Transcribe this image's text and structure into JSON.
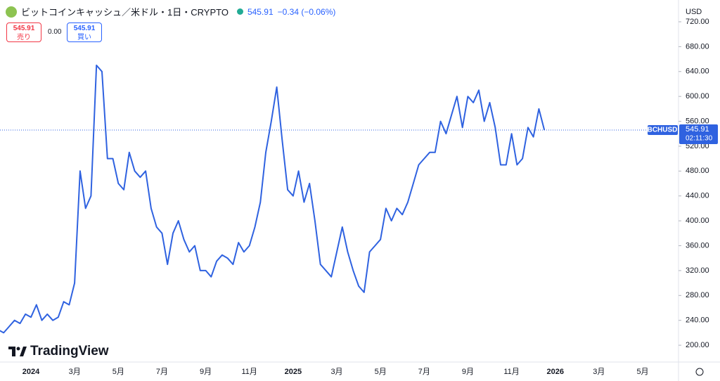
{
  "header": {
    "symbol": "ビットコインキャッシュ／米ドル・1日・CRYPTO",
    "price": "545.91",
    "change": "−0.34 (−0.06%)",
    "sell_price": "545.91",
    "sell_label": "売り",
    "spread": "0.00",
    "buy_price": "545.91",
    "buy_label": "買い",
    "currency": "USD",
    "logo": "TradingView"
  },
  "chart_data": {
    "type": "line",
    "color": "#2f62e0",
    "categories": [
      null,
      null,
      null,
      null,
      null,
      null,
      "2024",
      null,
      null,
      null,
      null,
      null,
      null,
      null,
      "3月",
      null,
      null,
      null,
      null,
      null,
      null,
      null,
      "5月",
      null,
      null,
      null,
      null,
      null,
      null,
      null,
      "7月",
      null,
      null,
      null,
      null,
      null,
      null,
      null,
      "9月",
      null,
      null,
      null,
      null,
      null,
      null,
      null,
      "11月",
      null,
      null,
      null,
      null,
      null,
      null,
      null,
      "2025",
      null,
      null,
      null,
      null,
      null,
      null,
      null,
      "3月",
      null,
      null,
      null,
      null,
      null,
      null,
      null,
      "5月",
      null,
      null,
      null,
      null,
      null,
      null,
      null,
      "7月",
      null,
      null,
      null,
      null,
      null,
      null,
      null,
      "9月",
      null,
      null,
      null,
      null,
      null,
      null,
      null,
      "11月",
      null,
      null,
      null,
      null,
      null,
      null,
      null,
      "2026",
      null,
      null,
      null,
      null,
      null,
      null,
      null,
      "3月",
      null,
      null,
      null,
      null,
      null,
      null,
      null,
      "5月",
      null,
      null,
      null,
      null,
      null
    ],
    "values": [
      225,
      220,
      230,
      240,
      235,
      250,
      245,
      265,
      240,
      250,
      240,
      245,
      270,
      265,
      300,
      480,
      420,
      440,
      650,
      640,
      500,
      500,
      460,
      450,
      510,
      480,
      470,
      480,
      420,
      390,
      380,
      330,
      380,
      400,
      370,
      350,
      360,
      320,
      320,
      310,
      335,
      345,
      340,
      330,
      365,
      350,
      360,
      390,
      430,
      510,
      560,
      615,
      530,
      450,
      440,
      480,
      430,
      460,
      400,
      330,
      320,
      310,
      350,
      390,
      350,
      320,
      295,
      285,
      350,
      360,
      370,
      420,
      400,
      420,
      410,
      430,
      460,
      490,
      500,
      510,
      510,
      560,
      540,
      570,
      600,
      550,
      600,
      590,
      610,
      560,
      590,
      550,
      490,
      490,
      540,
      490,
      500,
      550,
      535,
      580,
      545.91,
      null,
      null,
      null,
      null,
      null,
      null,
      null,
      null,
      null,
      null,
      null,
      null,
      null,
      null,
      null,
      null,
      null,
      null,
      null,
      null,
      null,
      null,
      null
    ],
    "ylim": [
      173,
      755
    ],
    "yticks": [
      {
        "value": 200,
        "label": "200.00"
      },
      {
        "value": 240,
        "label": "240.00"
      },
      {
        "value": 280,
        "label": "280.00"
      },
      {
        "value": 320,
        "label": "320.00"
      },
      {
        "value": 360,
        "label": "360.00"
      },
      {
        "value": 400,
        "label": "400.00"
      },
      {
        "value": 440,
        "label": "440.00"
      },
      {
        "value": 480,
        "label": "480.00"
      },
      {
        "value": 520,
        "label": "520.00"
      },
      {
        "value": 560,
        "label": "560.00"
      },
      {
        "value": 600,
        "label": "600.00"
      },
      {
        "value": 640,
        "label": "640.00"
      },
      {
        "value": 680,
        "label": "680.00"
      },
      {
        "value": 720,
        "label": "720.00"
      }
    ],
    "price_label": {
      "symbol": "BCHUSD",
      "value": 545.91,
      "countdown": "02:11:30"
    }
  }
}
